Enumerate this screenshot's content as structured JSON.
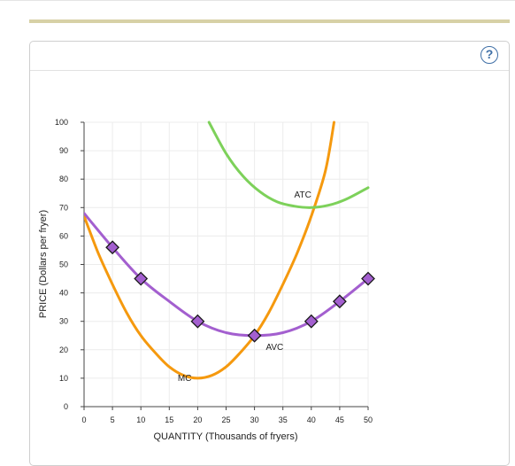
{
  "help": {
    "label": "?"
  },
  "chart_data": {
    "type": "line",
    "xlabel": "QUANTITY (Thousands of fryers)",
    "ylabel": "PRICE (Dollars per fryer)",
    "xlim": [
      0,
      50
    ],
    "ylim": [
      0,
      100
    ],
    "xticks": [
      0,
      5,
      10,
      15,
      20,
      25,
      30,
      35,
      40,
      45,
      50
    ],
    "yticks": [
      0,
      10,
      20,
      30,
      40,
      50,
      60,
      70,
      80,
      90,
      100
    ],
    "grid": true,
    "series": [
      {
        "name": "MC",
        "color": "#f5990e",
        "x": [
          0,
          2.5,
          5,
          7.5,
          10,
          12.5,
          15,
          17.5,
          20,
          22.5,
          25,
          27.5,
          30,
          32.5,
          35,
          37.5,
          40,
          42.5,
          44
        ],
        "y": [
          67,
          54,
          43,
          33,
          25,
          19,
          14,
          11,
          10,
          11,
          14,
          19,
          25,
          33,
          43,
          54,
          67,
          83,
          100
        ]
      },
      {
        "name": "AVC",
        "color": "#a35fcf",
        "x": [
          0,
          5,
          10,
          15,
          20,
          25,
          30,
          35,
          40,
          45,
          50
        ],
        "y": [
          68,
          56,
          45,
          37,
          30,
          26,
          25,
          26,
          30,
          37,
          45
        ],
        "markers_x": [
          5,
          10,
          20,
          30,
          40,
          45,
          50
        ],
        "markers_y": [
          56,
          45,
          30,
          25,
          30,
          37,
          45
        ]
      },
      {
        "name": "ATC",
        "color": "#7dd15a",
        "x": [
          22,
          25,
          28,
          31,
          34,
          37,
          40,
          43,
          46,
          50
        ],
        "y": [
          100,
          89,
          81,
          75.5,
          72,
          70.5,
          70,
          70.8,
          72.8,
          77
        ]
      }
    ],
    "labels": [
      {
        "text": "MC",
        "x": 16.5,
        "y": 9
      },
      {
        "text": "AVC",
        "x": 32,
        "y": 20
      },
      {
        "text": "ATC",
        "x": 37,
        "y": 73.5
      }
    ]
  }
}
